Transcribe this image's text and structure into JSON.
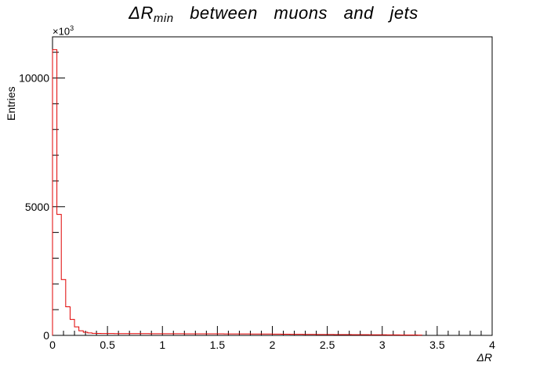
{
  "title": {
    "symbol": "ΔR",
    "subscript": "min",
    "words": [
      "between",
      "muons",
      "and",
      "jets"
    ]
  },
  "chart_data": {
    "type": "histogram",
    "title": "ΔR_min between muons and jets",
    "xlabel": "ΔR",
    "ylabel": "Entries",
    "y_scale_label": "×10",
    "y_scale_exponent": "3",
    "xlim": [
      0,
      4
    ],
    "ylim": [
      0,
      11600
    ],
    "x_ticks": [
      "0",
      "0.5",
      "1",
      "1.5",
      "2",
      "2.5",
      "3",
      "3.5",
      "4"
    ],
    "y_ticks": [
      "0",
      "5000",
      "10000"
    ],
    "bin_width": 0.04,
    "bin_start": 0,
    "values": [
      11100,
      4700,
      2170,
      1110,
      620,
      330,
      180,
      120,
      95,
      80,
      75,
      73,
      72,
      71,
      70,
      70,
      69,
      69,
      68,
      68,
      67,
      67,
      66,
      66,
      65,
      65,
      64,
      64,
      63,
      63,
      62,
      62,
      62,
      61,
      61,
      60,
      60,
      59,
      59,
      58,
      58,
      57,
      57,
      56,
      56,
      55,
      55,
      54,
      54,
      53,
      50,
      48,
      46,
      44,
      42,
      41,
      40,
      39,
      38,
      37,
      36,
      35,
      34,
      33,
      32,
      31,
      30,
      29,
      28,
      27,
      26,
      25,
      24,
      23,
      22,
      21,
      20,
      19,
      18,
      17,
      16,
      15,
      14,
      10
    ],
    "line_color": "#e00000"
  }
}
